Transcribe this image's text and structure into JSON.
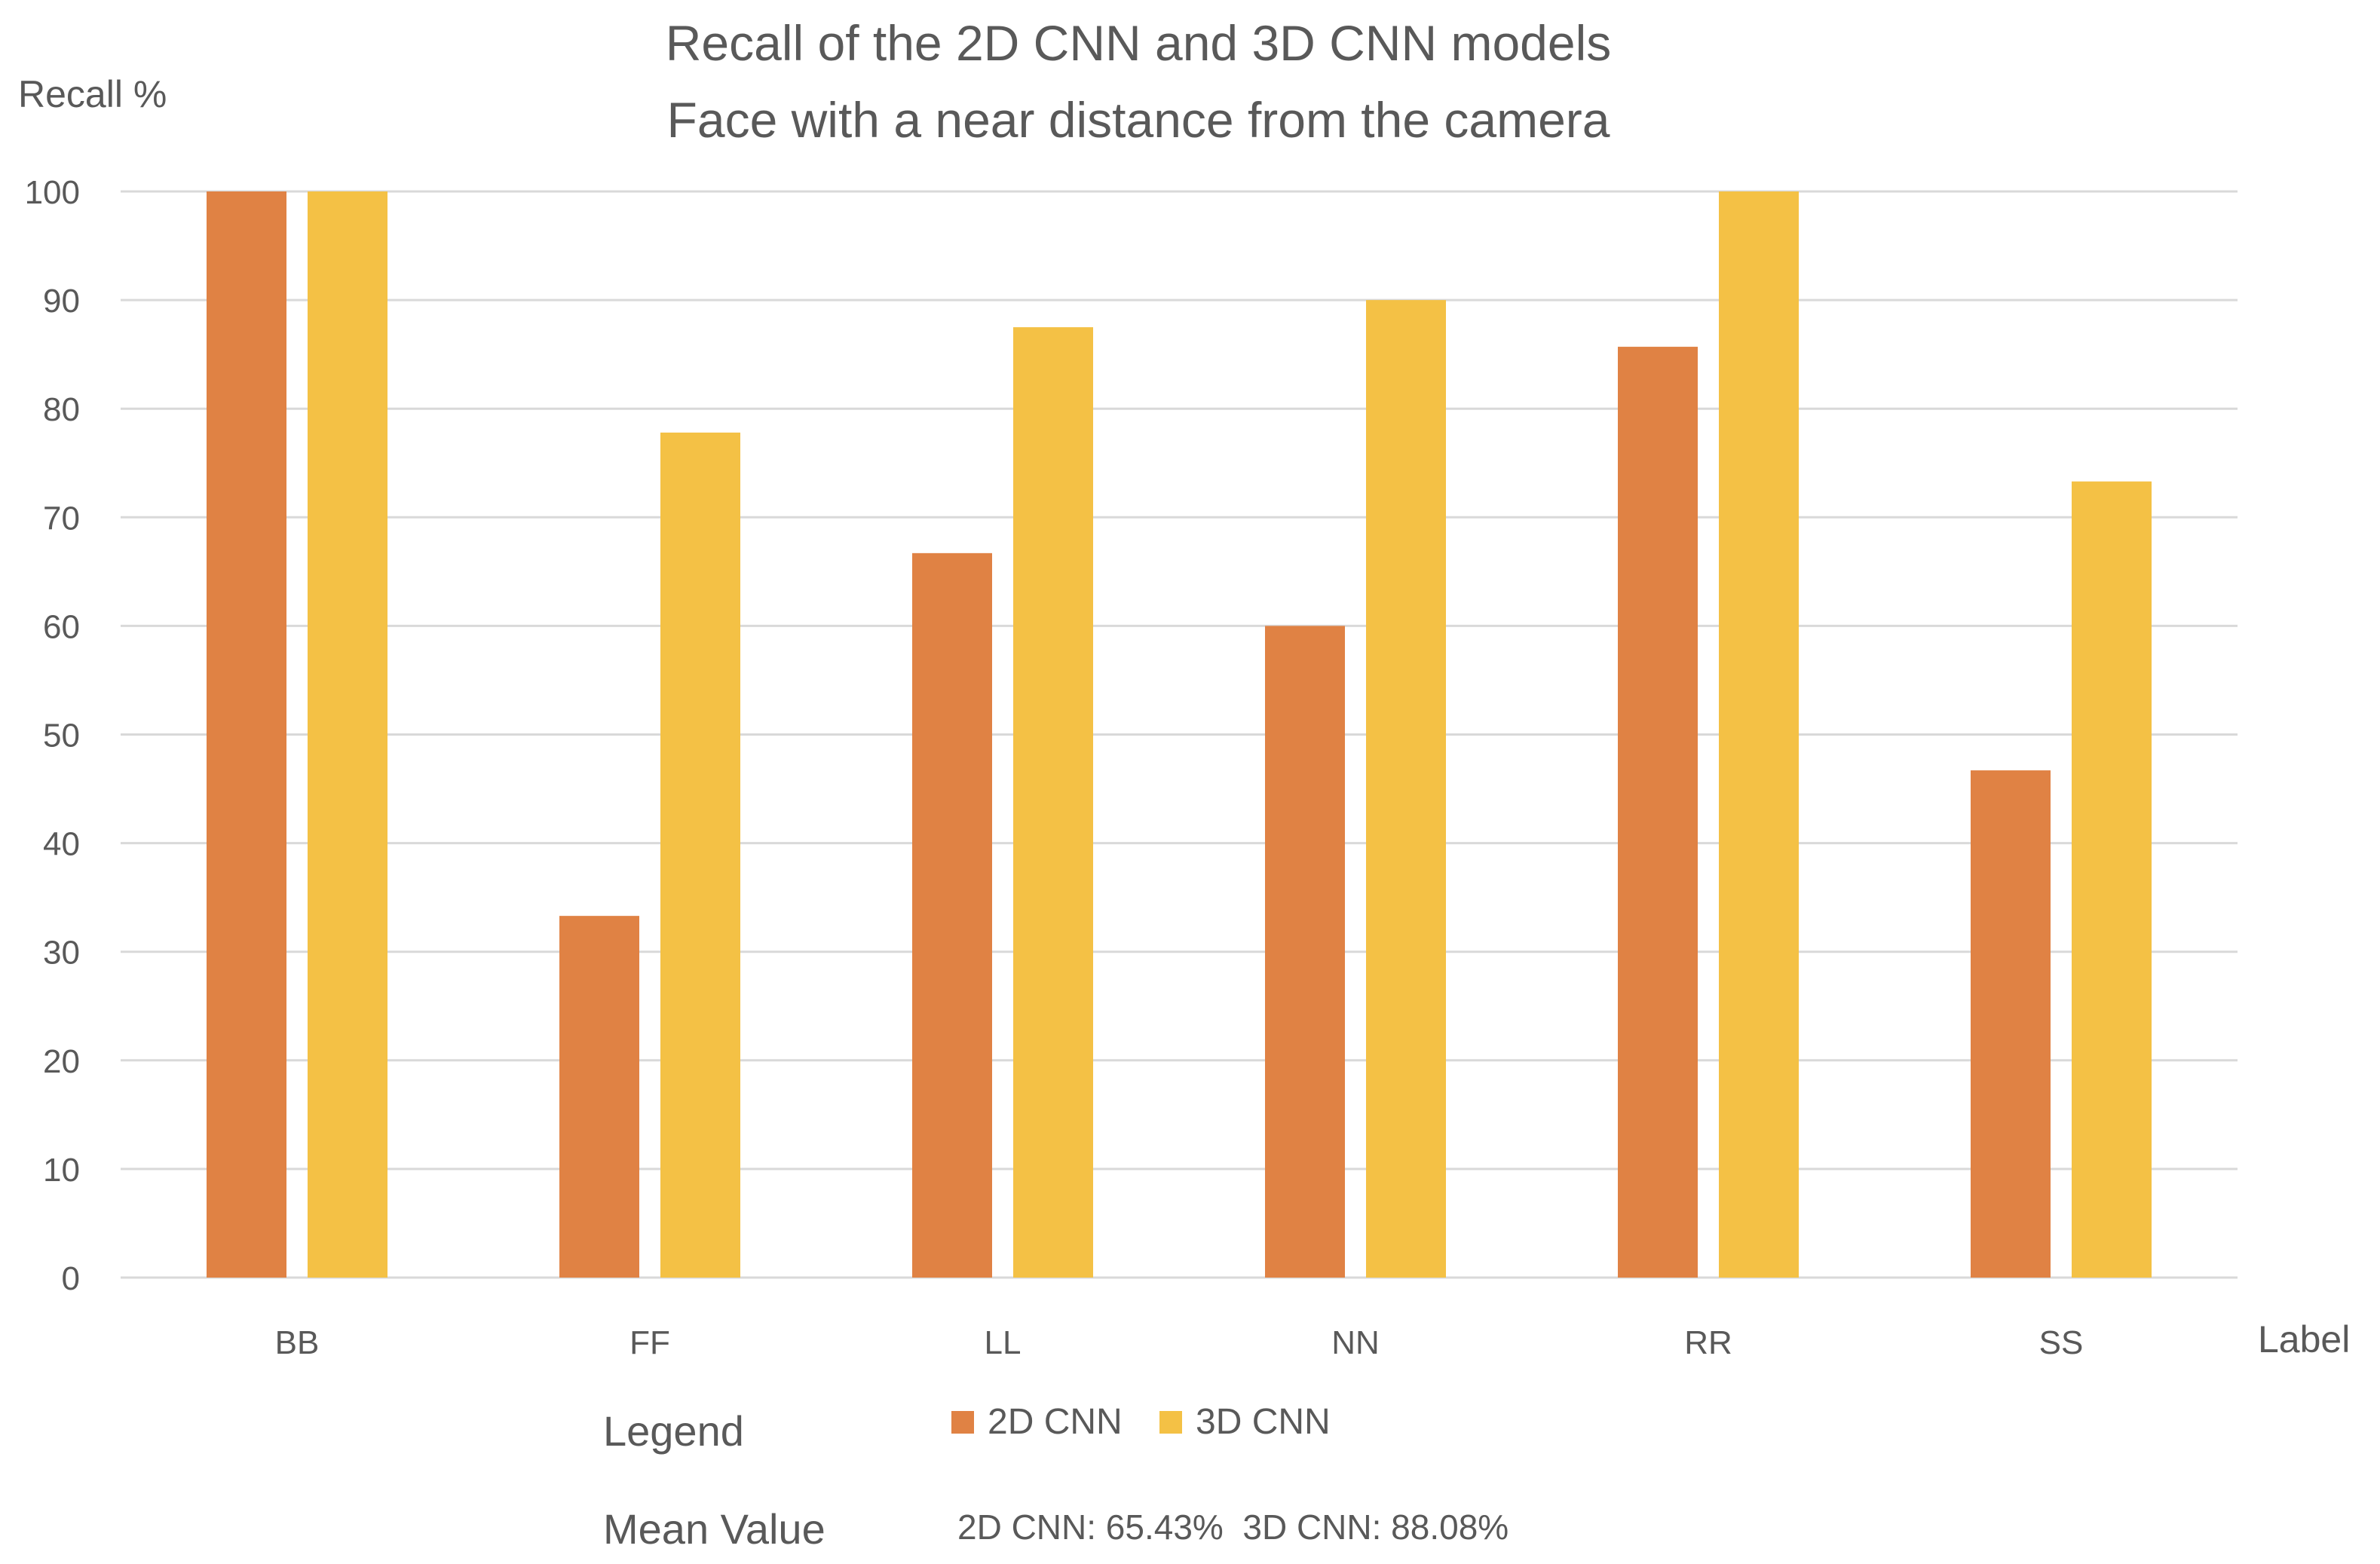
{
  "chart_data": {
    "type": "bar",
    "title": "Recall of the 2D CNN and 3D CNN models",
    "subtitle": "Face with a near distance from the camera",
    "ylabel": "Recall %",
    "xlabel": "Label",
    "categories": [
      "BB",
      "FF",
      "LL",
      "NN",
      "RR",
      "SS"
    ],
    "series": [
      {
        "name": "2D CNN",
        "color": "#E08244",
        "values": [
          100,
          33.3,
          66.7,
          60,
          85.7,
          46.7
        ]
      },
      {
        "name": "3D CNN",
        "color": "#F4C145",
        "values": [
          100,
          77.8,
          87.5,
          90,
          100,
          73.3
        ]
      }
    ],
    "ylim": [
      0,
      100
    ],
    "yticks": [
      0,
      10,
      20,
      30,
      40,
      50,
      60,
      70,
      80,
      90,
      100
    ],
    "grid": true,
    "grid_color": "#D9D9D9",
    "legend_title": "Legend",
    "legend_position": "bottom",
    "mean_label": "Mean Value",
    "mean_text": "2D CNN: 65.43%  3D CNN: 88.08%"
  }
}
